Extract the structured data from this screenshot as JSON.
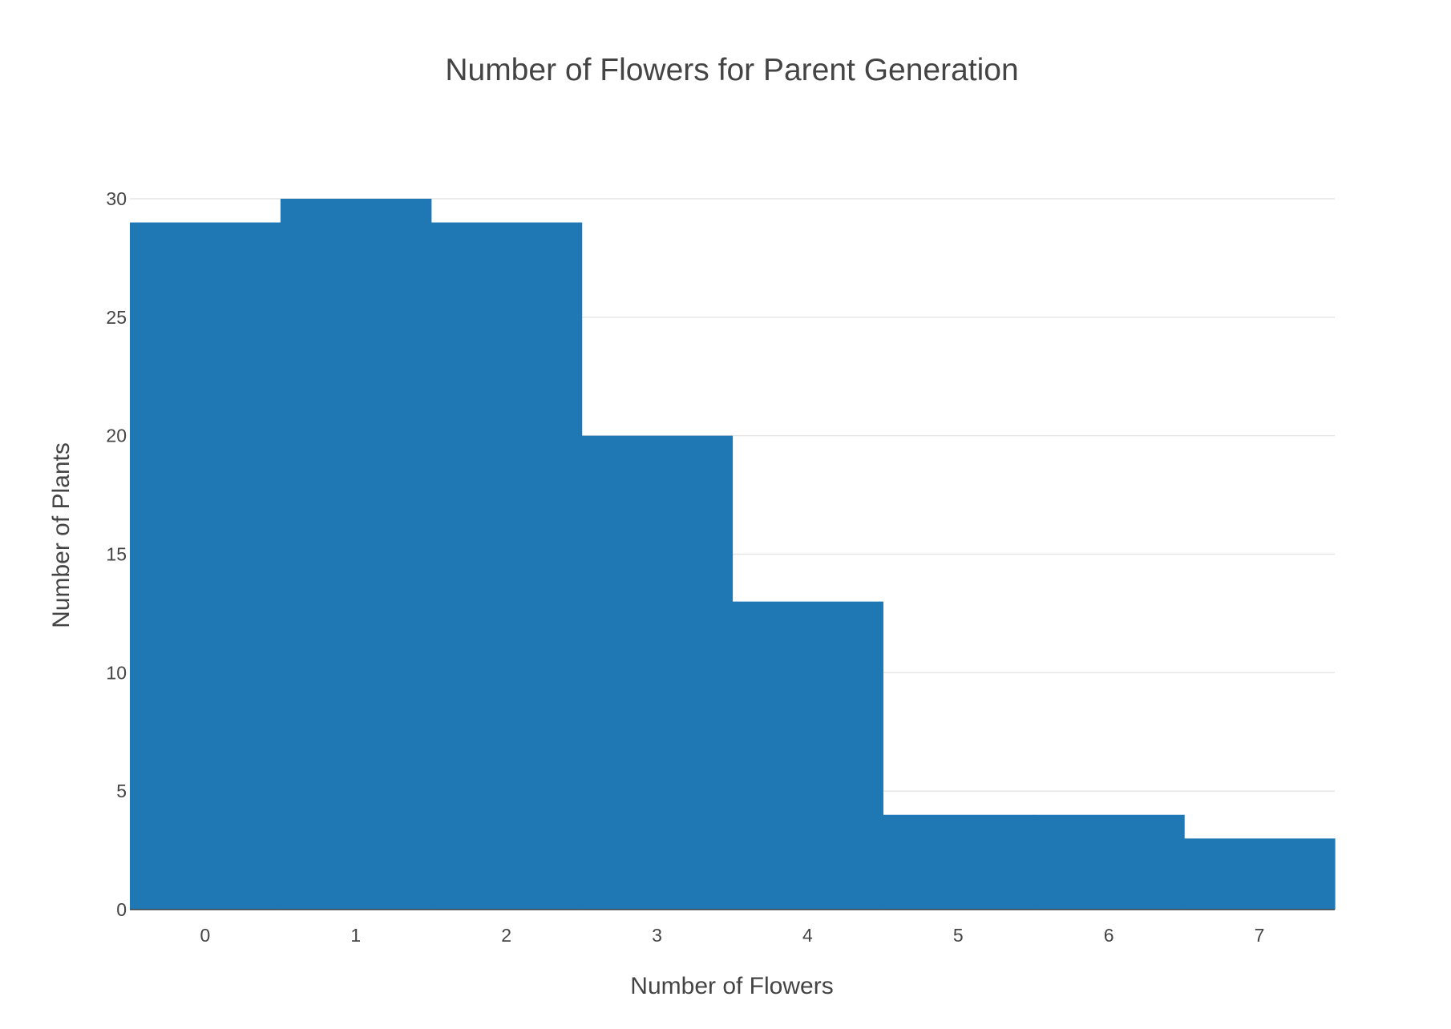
{
  "chart_data": {
    "type": "bar",
    "title": "Number of Flowers for Parent Generation",
    "xlabel": "Number of Flowers",
    "ylabel": "Number of Plants",
    "categories": [
      "0",
      "1",
      "2",
      "3",
      "4",
      "5",
      "6",
      "7"
    ],
    "x": [
      0,
      1,
      2,
      3,
      4,
      5,
      6,
      7
    ],
    "values": [
      29,
      30,
      29,
      20,
      13,
      4,
      4,
      3
    ],
    "xlim": [
      -0.5,
      7.5
    ],
    "ylim": [
      0,
      30
    ],
    "yticks": [
      0,
      5,
      10,
      15,
      20,
      25,
      30
    ],
    "grid": true,
    "bar_color": "#1f77b4",
    "legend": "none"
  }
}
